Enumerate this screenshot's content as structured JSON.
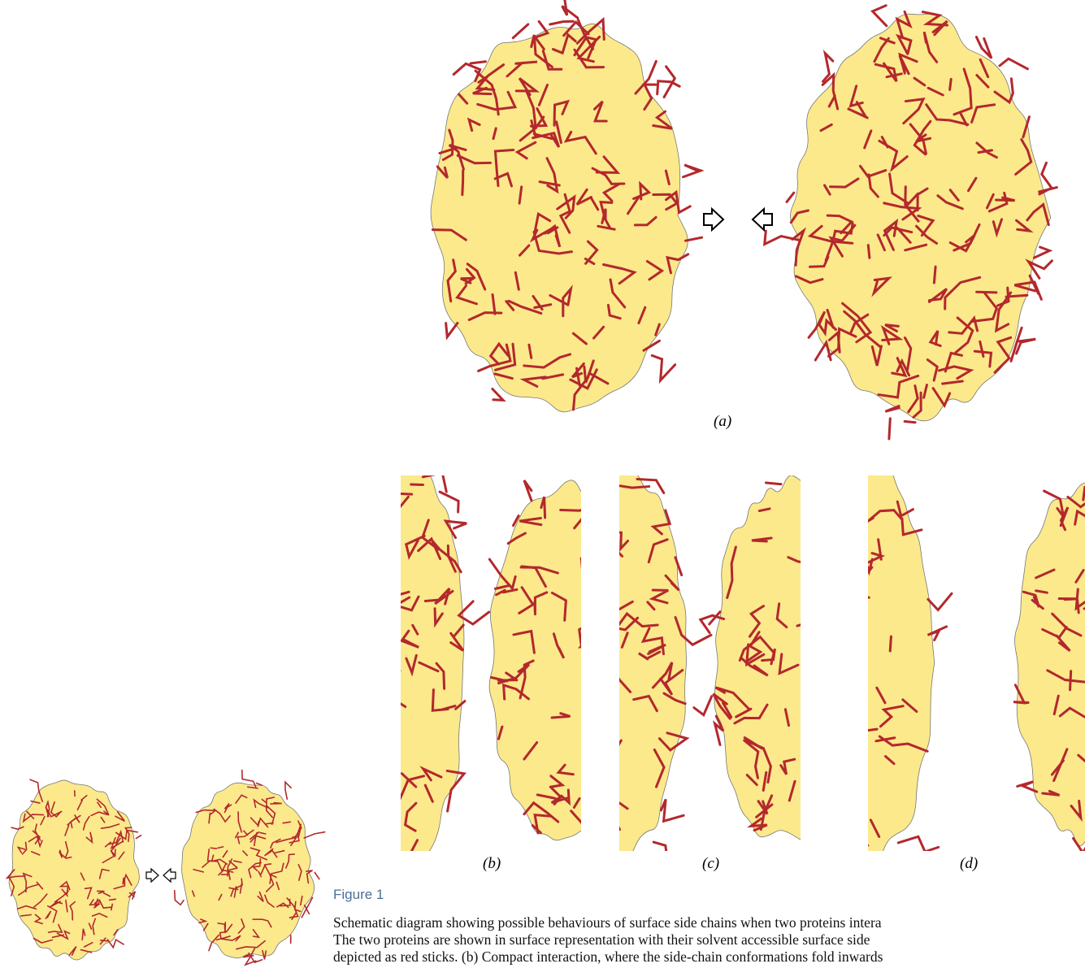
{
  "figure": {
    "panel_labels": [
      "(a)",
      "(b)",
      "(c)",
      "(d)"
    ],
    "title": "Figure 1",
    "caption_lines": [
      "Schematic diagram showing possible behaviours of surface side chains when two proteins intera",
      "The two proteins are shown in surface representation with their solvent accessible surface side",
      "depicted as red sticks. (b) Compact interaction, where the side-chain conformations fold inwards"
    ]
  }
}
